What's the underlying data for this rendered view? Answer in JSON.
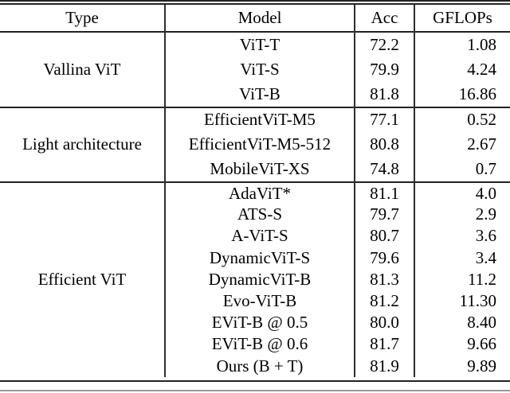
{
  "page": {
    "background_color": "#ffffff",
    "rule_color": "#222222",
    "bottom_light_rule_color": "#9a9a9a",
    "text_color": "#000000"
  },
  "table": {
    "headers": [
      {
        "label": "Type"
      },
      {
        "label": "Model"
      },
      {
        "label": "Acc"
      },
      {
        "label": "GFLOPs"
      }
    ],
    "groups": [
      {
        "type": "Vallina ViT",
        "rows": [
          {
            "model": "ViT-T",
            "acc": "72.2",
            "gflops": "1.08"
          },
          {
            "model": "ViT-S",
            "acc": "79.9",
            "gflops": "4.24"
          },
          {
            "model": "ViT-B",
            "acc": "81.8",
            "gflops": "16.86"
          }
        ]
      },
      {
        "type": "Light architecture",
        "rows": [
          {
            "model": "EfficientViT-M5",
            "acc": "77.1",
            "gflops": "0.52"
          },
          {
            "model": "EfficientViT-M5-512",
            "acc": "80.8",
            "gflops": "2.67"
          },
          {
            "model": "MobileViT-XS",
            "acc": "74.8",
            "gflops": "0.7"
          }
        ]
      },
      {
        "type": "Efficient ViT",
        "rows": [
          {
            "model": "AdaViT*",
            "acc": "81.1",
            "gflops": "4.0"
          },
          {
            "model": "ATS-S",
            "acc": "79.7",
            "gflops": "2.9"
          },
          {
            "model": "A-ViT-S",
            "acc": "80.7",
            "gflops": "3.6"
          },
          {
            "model": "DynamicViT-S",
            "acc": "79.6",
            "gflops": "3.4"
          },
          {
            "model": "DynamicViT-B",
            "acc": "81.3",
            "gflops": "11.2"
          },
          {
            "model": "Evo-ViT-B",
            "acc": "81.2",
            "gflops": "11.30"
          },
          {
            "model": "EViT-B @ 0.5",
            "acc": "80.0",
            "gflops": "8.40"
          },
          {
            "model": "EViT-B @ 0.6",
            "acc": "81.7",
            "gflops": "9.66"
          },
          {
            "model": "Ours (B + T)",
            "acc": "81.9",
            "gflops": "9.89"
          }
        ]
      }
    ]
  }
}
